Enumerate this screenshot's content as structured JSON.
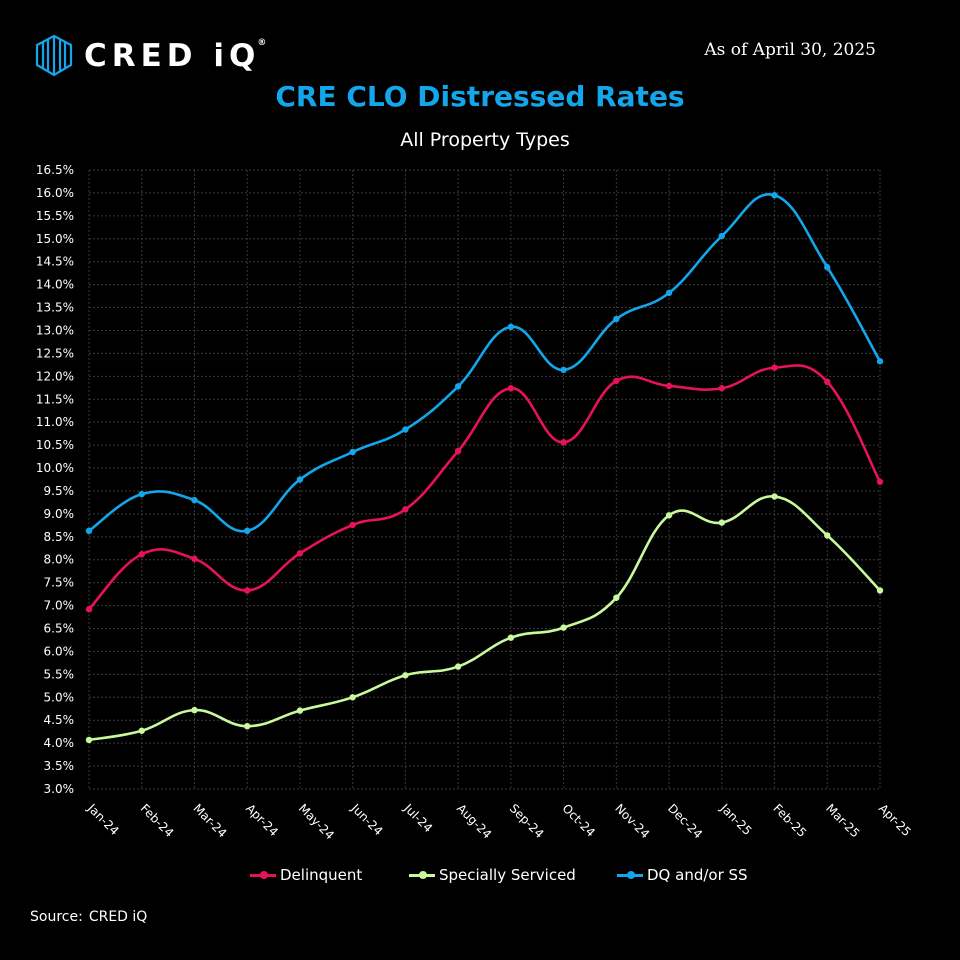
{
  "header": {
    "logo_text": "CRED iQ",
    "logo_reg": "®",
    "as_of": "As of April 30, 2025",
    "title": "CRE CLO Distressed Rates",
    "subtitle": "All Property Types"
  },
  "source": {
    "label": "Source:",
    "value": "CRED iQ"
  },
  "colors": {
    "background": "#000000",
    "title": "#14a6ea",
    "delinquent": "#e8125c",
    "specially_serviced": "#c9f99d",
    "dq_ss": "#14a6ea",
    "grid": "#3a3a3a"
  },
  "chart_data": {
    "type": "line",
    "title": "CRE CLO Distressed Rates",
    "subtitle": "All Property Types",
    "categories": [
      "Jan-24",
      "Feb-24",
      "Mar-24",
      "Apr-24",
      "May-24",
      "Jun-24",
      "Jul-24",
      "Aug-24",
      "Sep-24",
      "Oct-24",
      "Nov-24",
      "Dec-24",
      "Jan-25",
      "Feb-25",
      "Mar-25",
      "Apr-25"
    ],
    "ylim": [
      3.0,
      16.5
    ],
    "ystep": 0.5,
    "ytick_format": "percent_1dp",
    "grid": true,
    "smooth": true,
    "legend_position": "bottom",
    "series": [
      {
        "name": "Delinquent",
        "color": "#e8125c",
        "values": [
          6.92,
          8.12,
          8.02,
          7.33,
          8.14,
          8.76,
          9.1,
          10.37,
          11.74,
          10.56,
          11.9,
          11.79,
          11.74,
          12.19,
          11.88,
          9.7
        ]
      },
      {
        "name": "Specially Serviced",
        "color": "#c9f99d",
        "values": [
          4.07,
          4.27,
          4.72,
          4.37,
          4.71,
          5.0,
          5.48,
          5.67,
          6.3,
          6.52,
          7.17,
          8.97,
          8.81,
          9.38,
          8.53,
          7.33
        ]
      },
      {
        "name": "DQ and/or SS",
        "color": "#14a6ea",
        "values": [
          8.63,
          9.43,
          9.3,
          8.63,
          9.75,
          10.35,
          10.84,
          11.78,
          13.08,
          12.14,
          13.25,
          13.82,
          15.06,
          15.95,
          14.38,
          12.33
        ]
      }
    ]
  }
}
